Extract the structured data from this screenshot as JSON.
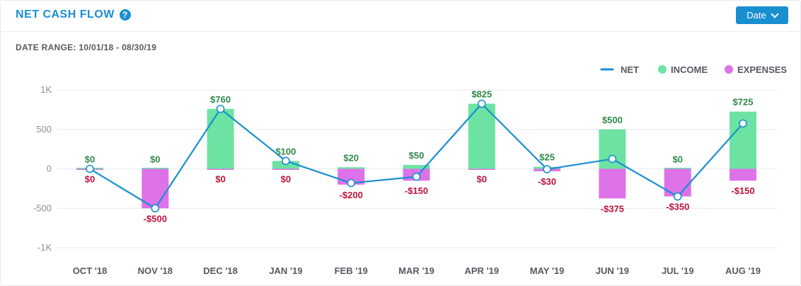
{
  "header": {
    "title": "NET CASH FLOW",
    "help_glyph": "?",
    "date_button_label": "Date"
  },
  "date_range": {
    "label": "DATE RANGE:",
    "value": "10/01/18 - 08/30/19"
  },
  "colors": {
    "net": "#1a8fd0",
    "income": "#6de3a3",
    "expenses": "#dd72e8",
    "income_label": "#2f8a4a",
    "expenses_label": "#c0123c"
  },
  "chart_data": {
    "type": "bar",
    "categories": [
      "OCT '18",
      "NOV '18",
      "DEC '18",
      "JAN '19",
      "FEB '19",
      "MAR '19",
      "APR '19",
      "MAY '19",
      "JUN '19",
      "JUL '19",
      "AUG '19"
    ],
    "series": [
      {
        "name": "INCOME",
        "values": [
          0,
          0,
          760,
          100,
          20,
          50,
          825,
          25,
          500,
          0,
          725
        ]
      },
      {
        "name": "EXPENSES",
        "values": [
          0,
          -500,
          0,
          0,
          -200,
          -150,
          0,
          -30,
          -375,
          -350,
          -150
        ]
      },
      {
        "name": "NET",
        "type": "line",
        "values": [
          0,
          -500,
          760,
          100,
          -180,
          -100,
          825,
          -5,
          125,
          -350,
          575
        ]
      }
    ],
    "income_labels": [
      "$0",
      "$0",
      "$760",
      "$100",
      "$20",
      "$50",
      "$825",
      "$25",
      "$500",
      "$0",
      "$725"
    ],
    "expense_labels": [
      "$0",
      "-$500",
      "$0",
      "$0",
      "-$200",
      "-$150",
      "$0",
      "-$30",
      "-$375",
      "-$350",
      "-$150"
    ],
    "y_ticks": [
      1000,
      500,
      0,
      -500,
      -1000
    ],
    "y_tick_labels": [
      "1K",
      "500",
      "0",
      "-500",
      "-1K"
    ],
    "ylim": [
      -1000,
      1000
    ],
    "legend": [
      "NET",
      "INCOME",
      "EXPENSES"
    ],
    "legend_position": "top-right",
    "grid": true
  }
}
